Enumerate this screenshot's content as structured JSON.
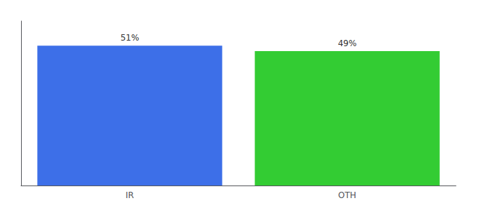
{
  "chart_data": {
    "type": "bar",
    "categories": [
      "IR",
      "OTH"
    ],
    "values": [
      51,
      49
    ],
    "value_labels": [
      "51%",
      "49%"
    ],
    "colors": [
      "#3d6fe8",
      "#33cc33"
    ],
    "ylim": [
      0,
      60
    ],
    "data_labels": true,
    "tick_labels": "x",
    "grid": false
  }
}
